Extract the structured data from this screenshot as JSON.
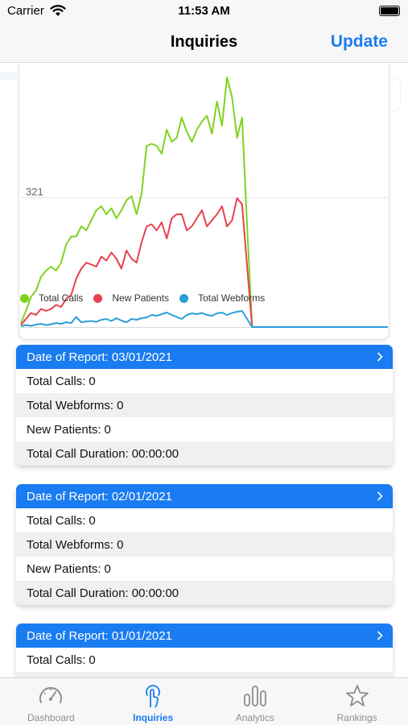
{
  "status_bar": {
    "carrier": "Carrier",
    "time": "11:53 AM"
  },
  "nav": {
    "title": "Inquiries",
    "update_label": "Update"
  },
  "chart": {
    "ytick_label": "321",
    "colors": {
      "total_calls": "#7ed321",
      "new_patients": "#e8404f",
      "total_webforms": "#2a9fd6"
    }
  },
  "chart_data": {
    "type": "line",
    "yticks": [
      321
    ],
    "grid": true,
    "legend_position": "bottom-left",
    "series": [
      {
        "name": "Total Calls",
        "color": "#7ed321",
        "values": [
          10,
          40,
          75,
          90,
          125,
          140,
          150,
          140,
          160,
          205,
          225,
          225,
          250,
          240,
          265,
          290,
          300,
          280,
          295,
          270,
          290,
          315,
          325,
          280,
          330,
          450,
          455,
          450,
          430,
          490,
          460,
          470,
          520,
          485,
          460,
          490,
          510,
          525,
          480,
          560,
          500,
          620,
          570,
          470,
          520,
          250,
          0,
          0,
          0,
          0,
          0,
          0,
          0,
          0,
          0,
          0,
          0,
          0,
          0,
          0,
          0,
          0,
          0,
          0,
          0,
          0,
          0,
          0,
          0,
          0,
          0,
          0,
          0,
          0
        ]
      },
      {
        "name": "New Patients",
        "color": "#e8404f",
        "values": [
          5,
          20,
          35,
          30,
          45,
          40,
          45,
          55,
          50,
          70,
          80,
          120,
          145,
          160,
          155,
          150,
          175,
          165,
          185,
          170,
          145,
          190,
          170,
          160,
          210,
          250,
          255,
          240,
          260,
          220,
          270,
          280,
          280,
          240,
          250,
          270,
          290,
          250,
          265,
          280,
          300,
          250,
          265,
          320,
          305,
          150,
          0,
          0,
          0,
          0,
          0,
          0,
          0,
          0,
          0,
          0,
          0,
          0,
          0,
          0,
          0,
          0,
          0,
          0,
          0,
          0,
          0,
          0,
          0,
          0,
          0,
          0,
          0,
          0
        ]
      },
      {
        "name": "Total Webforms",
        "color": "#2a9fd6",
        "values": [
          2,
          5,
          3,
          6,
          8,
          5,
          7,
          10,
          8,
          12,
          10,
          25,
          12,
          14,
          15,
          13,
          18,
          20,
          15,
          22,
          16,
          12,
          20,
          18,
          22,
          24,
          30,
          28,
          32,
          36,
          30,
          25,
          20,
          30,
          34,
          32,
          35,
          30,
          28,
          34,
          36,
          30,
          35,
          38,
          40,
          20,
          0,
          0,
          0,
          0,
          0,
          0,
          0,
          0,
          0,
          0,
          0,
          0,
          0,
          0,
          0,
          0,
          0,
          0,
          0,
          0,
          0,
          0,
          0,
          0,
          0,
          0,
          0,
          0
        ]
      }
    ]
  },
  "reports": [
    {
      "header_label": "Date of Report:",
      "date": "03/01/2021",
      "rows": [
        {
          "label": "Total Calls:",
          "value": "0"
        },
        {
          "label": "Total Webforms:",
          "value": "0"
        },
        {
          "label": "New Patients:",
          "value": "0"
        },
        {
          "label": "Total Call Duration:",
          "value": "00:00:00"
        }
      ]
    },
    {
      "header_label": "Date of Report:",
      "date": "02/01/2021",
      "rows": [
        {
          "label": "Total Calls:",
          "value": "0"
        },
        {
          "label": "Total Webforms:",
          "value": "0"
        },
        {
          "label": "New Patients:",
          "value": "0"
        },
        {
          "label": "Total Call Duration:",
          "value": "00:00:00"
        }
      ]
    },
    {
      "header_label": "Date of Report:",
      "date": "01/01/2021",
      "rows": [
        {
          "label": "Total Calls:",
          "value": "0"
        }
      ]
    }
  ],
  "tabs": [
    {
      "label": "Dashboard",
      "icon": "gauge-icon"
    },
    {
      "label": "Inquiries",
      "icon": "touch-icon"
    },
    {
      "label": "Analytics",
      "icon": "bars-icon"
    },
    {
      "label": "Rankings",
      "icon": "star-icon"
    }
  ],
  "colors": {
    "accent": "#1a7cf1",
    "inactive": "#8e8e8e"
  }
}
